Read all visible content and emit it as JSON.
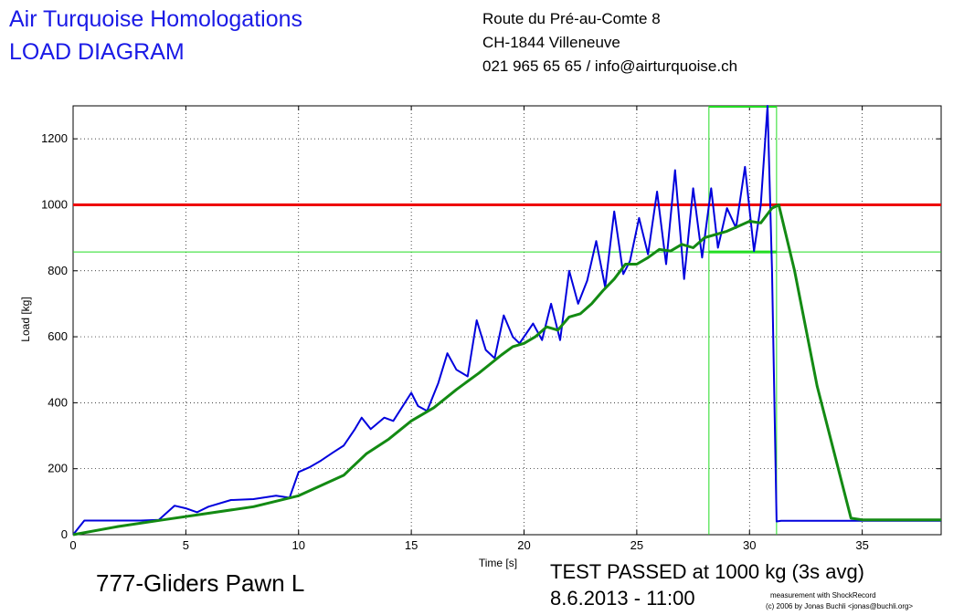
{
  "header": {
    "title_line1": "Air Turquoise Homologations",
    "title_line2": "LOAD DIAGRAM",
    "address_line1": "Route du Pré-au-Comte 8",
    "address_line2": "CH-1844 Villeneuve",
    "address_line3": "021 965 65 65 / info@airturquoise.ch"
  },
  "footer": {
    "glider": "777-Gliders Pawn L",
    "result": "TEST PASSED at 1000 kg (3s avg)",
    "date": "8.6.2013 - 11:00",
    "credit1": "measurement with ShockRecord",
    "credit2": "(c) 2006 by Jonas Buchli <jonas@buchli.org>"
  },
  "chart_data": {
    "type": "line",
    "xlabel": "Time [s]",
    "ylabel": "Load [kg]",
    "xlim": [
      0,
      38.5
    ],
    "ylim": [
      0,
      1300
    ],
    "xticks": [
      0,
      5,
      10,
      15,
      20,
      25,
      30,
      35
    ],
    "yticks": [
      0,
      200,
      400,
      600,
      800,
      1000,
      1200
    ],
    "grid": true,
    "colors": {
      "raw": "#0000dd",
      "avg": "#138a13",
      "limit": "#ee0000",
      "window": "#22dd22"
    },
    "threshold": 1000,
    "hold_level": 857,
    "hold_window": [
      28.2,
      31.2
    ],
    "series": [
      {
        "key": "raw",
        "x": [
          0,
          0.5,
          1,
          2,
          3,
          3.8,
          4.5,
          5,
          5.5,
          6,
          7,
          8,
          9,
          9.6,
          10,
          10.5,
          11,
          11.5,
          12,
          12.5,
          12.8,
          13.2,
          13.8,
          14.2,
          15,
          15.3,
          15.7,
          16.2,
          16.6,
          17,
          17.5,
          17.9,
          18.3,
          18.7,
          19.1,
          19.5,
          19.8,
          20.1,
          20.4,
          20.8,
          21.2,
          21.6,
          22,
          22.4,
          22.8,
          23.2,
          23.6,
          24,
          24.4,
          24.7,
          25.1,
          25.5,
          25.9,
          26.3,
          26.7,
          27.1,
          27.5,
          27.9,
          28.3,
          28.6,
          29,
          29.4,
          29.8,
          30.2,
          30.5,
          30.8,
          31,
          31.2,
          31.4,
          31.6,
          32,
          35,
          38.5
        ],
        "y": [
          0,
          43,
          43,
          43,
          43,
          45,
          88,
          80,
          68,
          85,
          105,
          108,
          118,
          112,
          190,
          205,
          225,
          248,
          270,
          320,
          355,
          320,
          355,
          345,
          430,
          390,
          375,
          460,
          550,
          500,
          480,
          650,
          560,
          535,
          665,
          600,
          580,
          610,
          640,
          590,
          700,
          590,
          800,
          700,
          770,
          890,
          750,
          980,
          790,
          830,
          960,
          850,
          1040,
          820,
          1105,
          775,
          1050,
          840,
          1050,
          870,
          990,
          930,
          1115,
          860,
          1000,
          1300,
          800,
          40,
          42,
          42,
          42,
          42,
          42
        ]
      },
      {
        "key": "avg",
        "x": [
          0,
          2,
          4,
          6,
          8,
          10,
          12,
          13,
          14,
          15,
          16,
          17,
          18,
          19,
          19.5,
          20,
          20.5,
          21,
          21.5,
          22,
          22.5,
          23,
          23.5,
          24,
          24.5,
          25,
          25.5,
          26,
          26.5,
          27,
          27.5,
          28,
          28.5,
          29,
          29.5,
          30,
          30.5,
          31,
          31.3,
          32,
          33,
          34.5,
          35,
          38.5
        ],
        "y": [
          0,
          25,
          45,
          65,
          85,
          118,
          180,
          245,
          290,
          345,
          385,
          440,
          490,
          545,
          570,
          580,
          600,
          630,
          620,
          660,
          670,
          700,
          740,
          775,
          820,
          820,
          840,
          865,
          860,
          880,
          870,
          900,
          910,
          920,
          935,
          950,
          945,
          990,
          1000,
          800,
          450,
          50,
          45,
          45
        ]
      }
    ]
  }
}
